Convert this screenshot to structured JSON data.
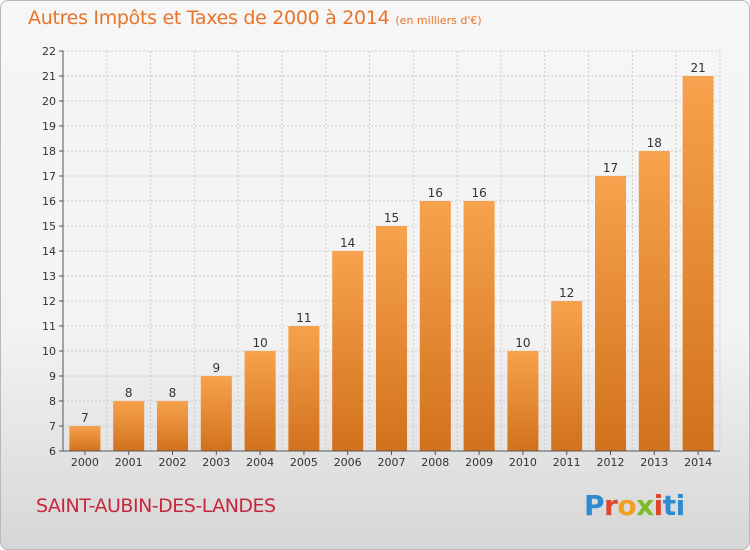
{
  "title": "Autres Impôts et Taxes de 2000 à 2014",
  "subtitle": "(en milliers d'€)",
  "commune": "SAINT-AUBIN-DES-LANDES",
  "logo": {
    "text": "Proxiti",
    "colors": [
      "#2e8bd0",
      "#e0452e",
      "#f2a024",
      "#7dbb2b",
      "#e0452e",
      "#2e8bd0"
    ]
  },
  "colors": {
    "bar_top": "#f7a24e",
    "bar_bottom": "#d2711d",
    "title": "#e8742a",
    "commune": "#c5283c",
    "grid": "#cccccc"
  },
  "chart_data": {
    "type": "bar",
    "title": "Autres Impôts et Taxes de 2000 à 2014",
    "subtitle": "(en milliers d'€)",
    "categories": [
      "2000",
      "2001",
      "2002",
      "2003",
      "2004",
      "2005",
      "2006",
      "2007",
      "2008",
      "2009",
      "2010",
      "2011",
      "2012",
      "2013",
      "2014"
    ],
    "values": [
      7,
      8,
      8,
      9,
      10,
      11,
      14,
      15,
      16,
      16,
      10,
      12,
      17,
      18,
      21
    ],
    "ylim": [
      6,
      22
    ],
    "yticks": [
      6,
      7,
      8,
      9,
      10,
      11,
      12,
      13,
      14,
      15,
      16,
      17,
      18,
      19,
      20,
      21,
      22
    ],
    "grid": true,
    "data_labels": true,
    "xlabel": "",
    "ylabel": ""
  }
}
